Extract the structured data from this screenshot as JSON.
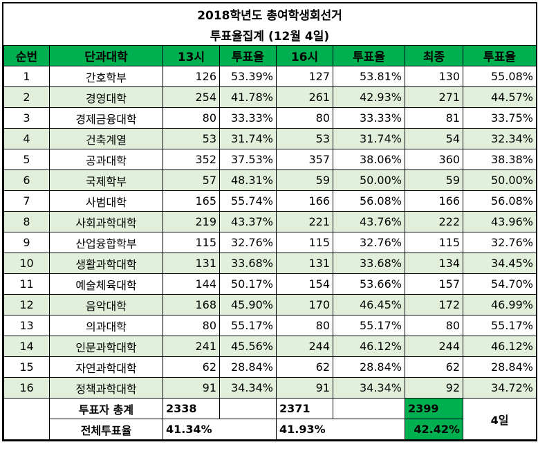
{
  "title_line1": "2018학년도 총여학생회선거",
  "title_line2": "투표율집계 (12월 4일)",
  "headers": [
    "순번",
    "단과대학",
    "13시",
    "투표율",
    "16시",
    "투표율",
    "최종",
    "투표율"
  ],
  "rows": [
    {
      "no": "1",
      "name": "간호학부",
      "c13": "126",
      "p13": "53.39%",
      "c16": "127",
      "p16": "53.81%",
      "cf": "130",
      "pf": "55.08%"
    },
    {
      "no": "2",
      "name": "경영대학",
      "c13": "254",
      "p13": "41.78%",
      "c16": "261",
      "p16": "42.93%",
      "cf": "271",
      "pf": "44.57%"
    },
    {
      "no": "3",
      "name": "경제금융대학",
      "c13": "80",
      "p13": "33.33%",
      "c16": "80",
      "p16": "33.33%",
      "cf": "81",
      "pf": "33.75%"
    },
    {
      "no": "4",
      "name": "건축계열",
      "c13": "53",
      "p13": "31.74%",
      "c16": "53",
      "p16": "31.74%",
      "cf": "54",
      "pf": "32.34%"
    },
    {
      "no": "5",
      "name": "공과대학",
      "c13": "352",
      "p13": "37.53%",
      "c16": "357",
      "p16": "38.06%",
      "cf": "360",
      "pf": "38.38%"
    },
    {
      "no": "6",
      "name": "국제학부",
      "c13": "57",
      "p13": "48.31%",
      "c16": "59",
      "p16": "50.00%",
      "cf": "59",
      "pf": "50.00%"
    },
    {
      "no": "7",
      "name": "사범대학",
      "c13": "165",
      "p13": "55.74%",
      "c16": "166",
      "p16": "56.08%",
      "cf": "166",
      "pf": "56.08%"
    },
    {
      "no": "8",
      "name": "사회과학대학",
      "c13": "219",
      "p13": "43.37%",
      "c16": "221",
      "p16": "43.76%",
      "cf": "222",
      "pf": "43.96%"
    },
    {
      "no": "9",
      "name": "산업융합학부",
      "c13": "115",
      "p13": "32.76%",
      "c16": "115",
      "p16": "32.76%",
      "cf": "115",
      "pf": "32.76%"
    },
    {
      "no": "10",
      "name": "생활과학대학",
      "c13": "131",
      "p13": "33.68%",
      "c16": "131",
      "p16": "33.68%",
      "cf": "134",
      "pf": "34.45%"
    },
    {
      "no": "11",
      "name": "예술체육대학",
      "c13": "144",
      "p13": "50.17%",
      "c16": "154",
      "p16": "53.66%",
      "cf": "157",
      "pf": "54.70%"
    },
    {
      "no": "12",
      "name": "음악대학",
      "c13": "168",
      "p13": "45.90%",
      "c16": "170",
      "p16": "46.45%",
      "cf": "172",
      "pf": "46.99%"
    },
    {
      "no": "13",
      "name": "의과대학",
      "c13": "80",
      "p13": "55.17%",
      "c16": "80",
      "p16": "55.17%",
      "cf": "80",
      "pf": "55.17%"
    },
    {
      "no": "14",
      "name": "인문과학대학",
      "c13": "241",
      "p13": "45.56%",
      "c16": "244",
      "p16": "46.12%",
      "cf": "244",
      "pf": "46.12%"
    },
    {
      "no": "15",
      "name": "자연과학대학",
      "c13": "62",
      "p13": "28.84%",
      "c16": "62",
      "p16": "28.84%",
      "cf": "62",
      "pf": "28.84%"
    },
    {
      "no": "16",
      "name": "정책과학대학",
      "c13": "91",
      "p13": "34.34%",
      "c16": "91",
      "p16": "34.34%",
      "cf": "92",
      "pf": "34.72%"
    }
  ],
  "footer": {
    "total_label": "투표자 총계",
    "total_13": "2338",
    "total_16": "2371",
    "total_final": "2399",
    "rate_label": "전체투표율",
    "rate_13": "41.34%",
    "rate_16": "41.93%",
    "rate_final": "42.42%",
    "day_label": "4일"
  },
  "colors": {
    "header_green": "#00b050",
    "row_alt": "#e2efda"
  }
}
